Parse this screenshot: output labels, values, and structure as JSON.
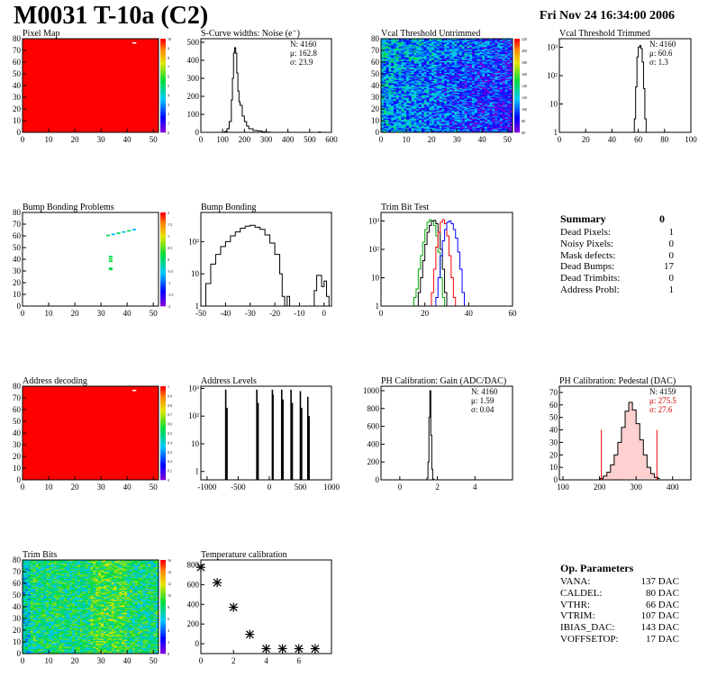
{
  "header": {
    "title": "M0031 T-10a (C2)",
    "date": "Fri Nov 24 16:34:00 2006"
  },
  "summary": {
    "title": "Summary",
    "value": "0",
    "rows": [
      {
        "label": "Dead Pixels:",
        "value": "1"
      },
      {
        "label": "Noisy Pixels:",
        "value": "0"
      },
      {
        "label": "Mask defects:",
        "value": "0"
      },
      {
        "label": "Dead Bumps:",
        "value": "17"
      },
      {
        "label": "Dead Trimbits:",
        "value": "0"
      },
      {
        "label": "Address Probl:",
        "value": "1"
      }
    ]
  },
  "op_params": {
    "title": "Op. Parameters",
    "rows": [
      {
        "label": "VANA:",
        "value": "137 DAC"
      },
      {
        "label": "CALDEL:",
        "value": "80 DAC"
      },
      {
        "label": "VTHR:",
        "value": "66 DAC"
      },
      {
        "label": "VTRIM:",
        "value": "107 DAC"
      },
      {
        "label": "IBIAS_DAC:",
        "value": "143 DAC"
      },
      {
        "label": "VOFFSETOP:",
        "value": "17 DAC"
      }
    ]
  },
  "chart_data": [
    {
      "type": "heatmap",
      "title": "Pixel Map",
      "xlim": [
        0,
        52
      ],
      "ylim": [
        0,
        80
      ],
      "xticks": [
        "0",
        "10",
        "20",
        "30",
        "40",
        "50"
      ],
      "yticks": [
        "0",
        "10",
        "20",
        "30",
        "40",
        "50",
        "60",
        "70",
        "80"
      ],
      "fill_color": "#ff0000",
      "palette": "root",
      "zticks": [
        "0",
        "1",
        "2",
        "3",
        "4",
        "5",
        "6",
        "7",
        "8",
        "9",
        "10"
      ],
      "note": "uniform 10 hits per pixel, one dead pixel near (42,76)"
    },
    {
      "type": "histogram",
      "title": "S-Curve widths: Noise (e⁻)",
      "xlim": [
        0,
        600
      ],
      "ylog": false,
      "ylim": [
        0,
        520
      ],
      "xticks": [
        "0",
        "100",
        "200",
        "300",
        "400",
        "500",
        "600"
      ],
      "yticks": [
        "0",
        "100",
        "200",
        "300",
        "400",
        "500"
      ],
      "stats": [
        "N: 4160",
        "μ: 162.8",
        "σ: 23.9"
      ],
      "series": [
        {
          "color": "#000000",
          "x": [
            100,
            110,
            120,
            130,
            140,
            145,
            150,
            155,
            160,
            165,
            170,
            175,
            180,
            190,
            200,
            210,
            220,
            240,
            260,
            280,
            300,
            320,
            540,
            550
          ],
          "y": [
            0,
            5,
            20,
            60,
            180,
            300,
            440,
            470,
            440,
            330,
            230,
            170,
            150,
            90,
            60,
            35,
            20,
            10,
            8,
            3,
            1,
            0,
            2,
            0
          ]
        }
      ]
    },
    {
      "type": "heatmap",
      "title": "Vcal Threshold Untrimmed",
      "xlim": [
        0,
        52
      ],
      "ylim": [
        0,
        80
      ],
      "xticks": [
        "0",
        "10",
        "20",
        "30",
        "40",
        "50"
      ],
      "yticks": [
        "0",
        "10",
        "20",
        "30",
        "40",
        "50",
        "60",
        "70",
        "80"
      ],
      "palette": "root",
      "zticks": [
        "60",
        "80",
        "100",
        "120",
        "140",
        "160",
        "180",
        "200",
        "220"
      ],
      "note": "noisy blue/cyan map, lower thresholds at high column"
    },
    {
      "type": "histogram",
      "title": "Vcal Threshold Trimmed",
      "xlim": [
        0,
        100
      ],
      "ylog": true,
      "ylim": [
        1,
        2000
      ],
      "xticks": [
        "0",
        "20",
        "40",
        "60",
        "80",
        "100"
      ],
      "yticks": [
        "1",
        "10",
        "10²",
        "10³"
      ],
      "stats": [
        "N: 4160",
        "μ: 60.6",
        "σ: 1.3"
      ],
      "series": [
        {
          "color": "#000000",
          "x": [
            56,
            57,
            58,
            59,
            60,
            61,
            62,
            63,
            64,
            65,
            66
          ],
          "y": [
            1,
            3,
            40,
            450,
            1000,
            1150,
            900,
            300,
            35,
            3,
            1
          ]
        }
      ]
    },
    {
      "type": "heatmap",
      "title": "Bump Bonding Problems",
      "xlim": [
        0,
        52
      ],
      "ylim": [
        0,
        80
      ],
      "xticks": [
        "0",
        "10",
        "20",
        "30",
        "40",
        "50"
      ],
      "yticks": [
        "0",
        "10",
        "20",
        "30",
        "40",
        "50",
        "60",
        "70",
        "80"
      ],
      "palette": "root",
      "zticks": [
        "-2",
        "-1.5",
        "-1",
        "-0.5",
        "0",
        "0.5",
        "1",
        "1.5",
        "2"
      ],
      "points": [
        [
          32,
          60
        ],
        [
          34,
          61
        ],
        [
          36,
          62
        ],
        [
          38,
          63
        ],
        [
          40,
          64
        ],
        [
          42,
          65
        ],
        [
          33,
          42
        ],
        [
          33,
          40
        ],
        [
          33,
          38
        ],
        [
          33,
          32
        ],
        [
          33,
          31
        ]
      ]
    },
    {
      "type": "histogram",
      "title": "Bump Bonding",
      "xlim": [
        -50,
        3
      ],
      "ylog": true,
      "ylim": [
        1,
        800
      ],
      "xticks": [
        "-50",
        "-40",
        "-30",
        "-20",
        "-10",
        "0"
      ],
      "yticks": [
        "1",
        "10",
        "10²"
      ],
      "series": [
        {
          "color": "#000000",
          "x": [
            -50,
            -48,
            -46,
            -44,
            -42,
            -40,
            -38,
            -36,
            -34,
            -32,
            -30,
            -28,
            -26,
            -24,
            -22,
            -20,
            -18,
            -17,
            -16,
            -15,
            -14,
            -13,
            -4,
            -3,
            -2,
            -1,
            0,
            1,
            2
          ],
          "y": [
            1,
            5,
            20,
            40,
            70,
            100,
            150,
            200,
            260,
            300,
            320,
            280,
            240,
            160,
            90,
            40,
            10,
            2,
            1,
            2,
            1,
            0,
            3,
            9,
            9,
            4,
            6,
            2,
            0
          ]
        }
      ]
    },
    {
      "type": "histogram",
      "title": "Trim Bit Test",
      "xlim": [
        0,
        60
      ],
      "ylog": true,
      "ylim": [
        1,
        2000
      ],
      "xticks": [
        "0",
        "20",
        "40",
        "60"
      ],
      "yticks": [
        "1",
        "10",
        "10²",
        "10³"
      ],
      "series": [
        {
          "color": "#00aa00",
          "x": [
            14,
            15,
            16,
            17,
            18,
            19,
            20,
            21,
            22,
            23,
            24,
            25,
            26,
            27,
            28,
            29
          ],
          "y": [
            1,
            2,
            4,
            20,
            60,
            180,
            500,
            900,
            1100,
            1000,
            700,
            300,
            80,
            10,
            2,
            1
          ]
        },
        {
          "color": "#000000",
          "x": [
            16,
            17,
            18,
            19,
            20,
            21,
            22,
            23,
            24,
            25,
            26,
            27,
            28,
            29,
            30
          ],
          "y": [
            1,
            3,
            10,
            40,
            150,
            400,
            700,
            1000,
            1050,
            800,
            400,
            100,
            20,
            3,
            1
          ]
        },
        {
          "color": "#ff0000",
          "x": [
            22,
            23,
            24,
            25,
            26,
            27,
            28,
            29,
            30,
            31,
            32,
            33,
            34
          ],
          "y": [
            1,
            3,
            20,
            120,
            400,
            900,
            1100,
            800,
            300,
            60,
            10,
            2,
            1
          ]
        },
        {
          "color": "#0000ff",
          "x": [
            24,
            25,
            26,
            27,
            28,
            29,
            30,
            31,
            32,
            33,
            34,
            35,
            36,
            37,
            38
          ],
          "y": [
            1,
            2,
            10,
            60,
            200,
            500,
            900,
            1000,
            800,
            500,
            250,
            80,
            20,
            3,
            1
          ]
        }
      ]
    },
    {
      "type": "heatmap",
      "title": "Address decoding",
      "xlim": [
        0,
        52
      ],
      "ylim": [
        0,
        80
      ],
      "xticks": [
        "0",
        "10",
        "20",
        "30",
        "40",
        "50"
      ],
      "yticks": [
        "0",
        "10",
        "20",
        "30",
        "40",
        "50",
        "60",
        "70",
        "80"
      ],
      "fill_color": "#ff0000",
      "palette": "root",
      "zticks": [
        "0",
        "0.1",
        "0.2",
        "0.3",
        "0.4",
        "0.5",
        "0.6",
        "0.7",
        "0.8",
        "0.9",
        "1"
      ]
    },
    {
      "type": "histogram",
      "title": "Address Levels",
      "xlim": [
        -1100,
        1000
      ],
      "ylog": true,
      "ylim": [
        0.5,
        1200
      ],
      "xticks": [
        "-1000",
        "-500",
        "0",
        "500",
        "1000"
      ],
      "yticks": [
        "1",
        "10",
        "10²",
        "10³"
      ],
      "series": [
        {
          "color": "#000000",
          "spikes": [
            [
              -700,
              900
            ],
            [
              -680,
              200
            ],
            [
              -200,
              900
            ],
            [
              -180,
              300
            ],
            [
              50,
              900
            ],
            [
              60,
              600
            ],
            [
              200,
              900
            ],
            [
              220,
              400
            ],
            [
              350,
              900
            ],
            [
              370,
              300
            ],
            [
              500,
              800
            ],
            [
              520,
              200
            ],
            [
              620,
              500
            ],
            [
              640,
              100
            ]
          ]
        }
      ]
    },
    {
      "type": "histogram",
      "title": "PH Calibration: Gain (ADC/DAC)",
      "xlim": [
        -1,
        6
      ],
      "ylog": false,
      "ylim": [
        0,
        1050
      ],
      "xticks": [
        "0",
        "2",
        "4"
      ],
      "yticks": [
        "0",
        "200",
        "400",
        "600",
        "800",
        "1000"
      ],
      "stats": [
        "N: 4160",
        "μ: 1.59",
        "σ: 0.04"
      ],
      "series": [
        {
          "color": "#000000",
          "x": [
            1.4,
            1.45,
            1.5,
            1.55,
            1.6,
            1.65,
            1.7,
            1.75,
            1.8
          ],
          "y": [
            0,
            20,
            200,
            700,
            1000,
            500,
            120,
            10,
            0
          ]
        }
      ]
    },
    {
      "type": "histogram",
      "title": "PH Calibration: Pedestal (DAC)",
      "xlim": [
        90,
        450
      ],
      "ylog": false,
      "ylim": [
        0,
        75
      ],
      "xticks": [
        "100",
        "200",
        "300",
        "400"
      ],
      "yticks": [
        "0",
        "10",
        "20",
        "30",
        "40",
        "50",
        "60",
        "70"
      ],
      "stats": [
        "N: 4159",
        "μ: 275.5",
        "σ: 27.6"
      ],
      "series": [
        {
          "color": "#000000",
          "x": [
            200,
            210,
            220,
            230,
            240,
            250,
            260,
            270,
            280,
            290,
            300,
            310,
            320,
            330,
            340,
            350,
            360
          ],
          "y": [
            1,
            3,
            6,
            12,
            20,
            30,
            42,
            55,
            62,
            56,
            45,
            32,
            20,
            10,
            5,
            2,
            1
          ]
        }
      ],
      "cut_lines": [
        205,
        357
      ]
    },
    {
      "type": "heatmap",
      "title": "Trim Bits",
      "xlim": [
        0,
        52
      ],
      "ylim": [
        0,
        80
      ],
      "xticks": [
        "0",
        "10",
        "20",
        "30",
        "40",
        "50"
      ],
      "yticks": [
        "0",
        "10",
        "20",
        "30",
        "40",
        "50",
        "60",
        "70",
        "80"
      ],
      "palette": "root",
      "zticks": [
        "0",
        "2",
        "4",
        "6",
        "8",
        "10",
        "12",
        "14",
        "16"
      ]
    },
    {
      "type": "scatter",
      "title": "Temperature calibration",
      "xlim": [
        0,
        8
      ],
      "ylim": [
        -100,
        850
      ],
      "xticks": [
        "0",
        "2",
        "4",
        "6"
      ],
      "yticks": [
        "0",
        "200",
        "400",
        "600",
        "800"
      ],
      "x": [
        0,
        1,
        2,
        3,
        4,
        5,
        6,
        7
      ],
      "y": [
        775,
        620,
        370,
        95,
        -50,
        -50,
        -50,
        -50
      ]
    }
  ]
}
